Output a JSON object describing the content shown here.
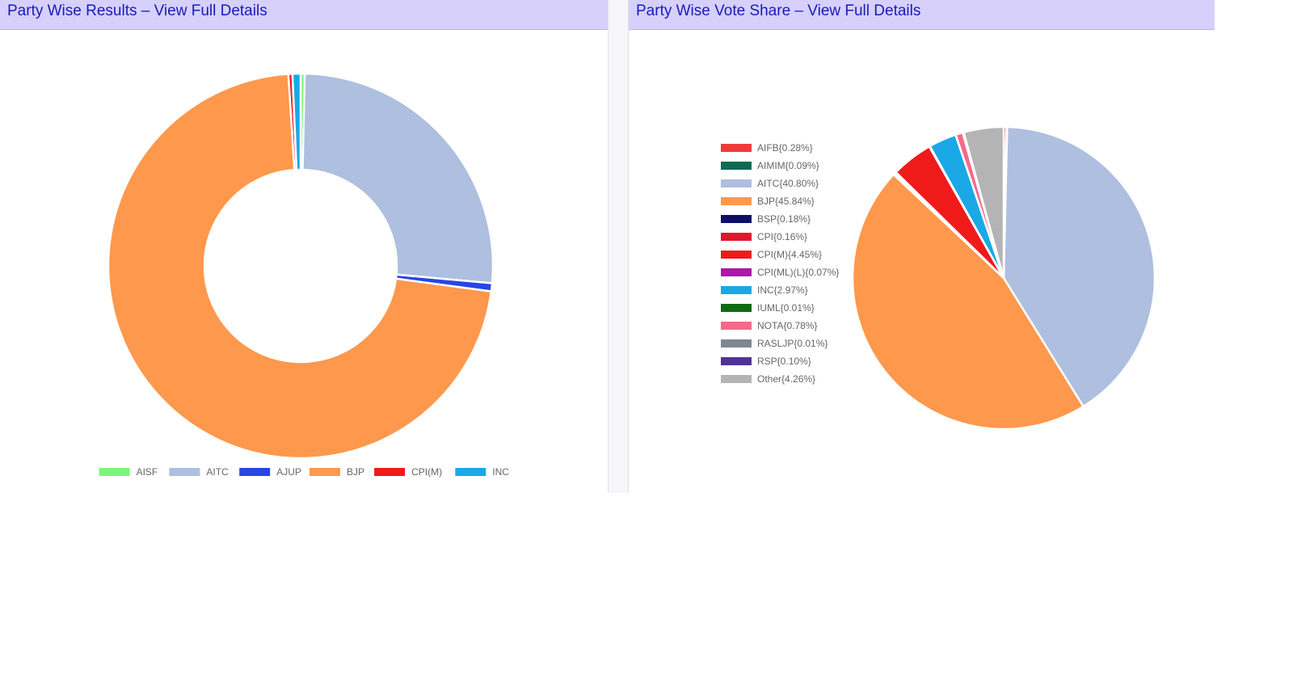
{
  "left_panel": {
    "title": "Party Wise Results – View Full Details"
  },
  "right_panel": {
    "title": "Party Wise Vote Share – View Full Details"
  },
  "chart_data": [
    {
      "type": "pie",
      "variant": "doughnut",
      "legend_position": "bottom",
      "series": [
        {
          "name": "AISF",
          "value": 1,
          "color": "#7cf57c"
        },
        {
          "name": "AITC",
          "value": 77,
          "color": "#aebfdf"
        },
        {
          "name": "AJUP",
          "value": 2,
          "color": "#2746e6"
        },
        {
          "name": "BJP",
          "value": 212,
          "color": "#fe984d"
        },
        {
          "name": "CPI(M)",
          "value": 1,
          "color": "#ef1b1b"
        },
        {
          "name": "INC",
          "value": 2,
          "color": "#1aa9e6"
        }
      ]
    },
    {
      "type": "pie",
      "legend_position": "left",
      "series": [
        {
          "name": "AIFB",
          "label": "AIFB{0.28%}",
          "value": 0.28,
          "color": "#f03a3a"
        },
        {
          "name": "AIMIM",
          "label": "AIMIM{0.09%}",
          "value": 0.09,
          "color": "#0c6b52"
        },
        {
          "name": "AITC",
          "label": "AITC{40.80%}",
          "value": 40.8,
          "color": "#aebfdf"
        },
        {
          "name": "BJP",
          "label": "BJP{45.84%}",
          "value": 45.84,
          "color": "#fe984d"
        },
        {
          "name": "BSP",
          "label": "BSP{0.18%}",
          "value": 0.18,
          "color": "#0d0d6b"
        },
        {
          "name": "CPI",
          "label": "CPI{0.16%}",
          "value": 0.16,
          "color": "#e0162e"
        },
        {
          "name": "CPI(M)",
          "label": "CPI(M){4.45%}",
          "value": 4.45,
          "color": "#ef1b1b"
        },
        {
          "name": "CPI(ML)(L)",
          "label": "CPI(ML)(L){0.07%}",
          "value": 0.07,
          "color": "#b215a8"
        },
        {
          "name": "INC",
          "label": "INC{2.97%}",
          "value": 2.97,
          "color": "#1aa9e6"
        },
        {
          "name": "IUML",
          "label": "IUML{0.01%}",
          "value": 0.01,
          "color": "#0f6a12"
        },
        {
          "name": "NOTA",
          "label": "NOTA{0.78%}",
          "value": 0.78,
          "color": "#f56a8a"
        },
        {
          "name": "RASLJP",
          "label": "RASLJP{0.01%}",
          "value": 0.01,
          "color": "#7d8893"
        },
        {
          "name": "RSP",
          "label": "RSP{0.10%}",
          "value": 0.1,
          "color": "#4f3592"
        },
        {
          "name": "Other",
          "label": "Other{4.26%}",
          "value": 4.26,
          "color": "#b4b4b4"
        }
      ]
    }
  ]
}
